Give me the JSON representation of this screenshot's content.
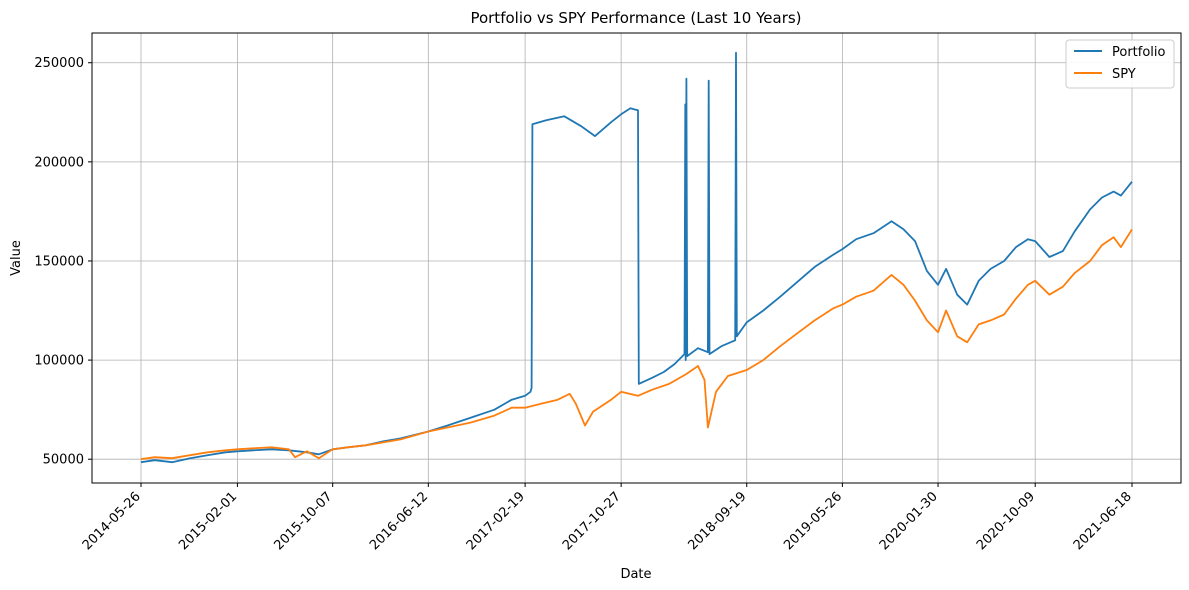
{
  "chart_data": {
    "type": "line",
    "title": "Portfolio vs SPY Performance (Last 10 Years)",
    "xlabel": "Date",
    "ylabel": "Value",
    "x_ticks": [
      "2014-05-26",
      "2015-02-01",
      "2015-10-07",
      "2016-06-12",
      "2017-02-19",
      "2017-10-27",
      "2018-09-19",
      "2019-05-26",
      "2020-01-30",
      "2020-10-09",
      "2021-06-18"
    ],
    "y_ticks": [
      50000,
      100000,
      150000,
      200000,
      250000
    ],
    "y_tick_labels": [
      "50000",
      "100000",
      "150000",
      "200000",
      "250000"
    ],
    "ylim": [
      38000,
      265000
    ],
    "grid": true,
    "legend_position": "top-right",
    "colors": {
      "portfolio": "#1f77b4",
      "spy": "#ff7f0e"
    },
    "series": [
      {
        "name": "Portfolio",
        "color": "#1f77b4",
        "points": [
          [
            "2014-05-26",
            48500
          ],
          [
            "2014-07-01",
            49500
          ],
          [
            "2014-08-15",
            48500
          ],
          [
            "2014-10-01",
            50500
          ],
          [
            "2014-11-15",
            52000
          ],
          [
            "2015-01-01",
            53500
          ],
          [
            "2015-02-01",
            54000
          ],
          [
            "2015-03-15",
            54500
          ],
          [
            "2015-05-01",
            55000
          ],
          [
            "2015-06-15",
            54500
          ],
          [
            "2015-08-01",
            53500
          ],
          [
            "2015-09-01",
            52500
          ],
          [
            "2015-10-07",
            55000
          ],
          [
            "2015-11-15",
            56000
          ],
          [
            "2016-01-01",
            57000
          ],
          [
            "2016-02-15",
            59000
          ],
          [
            "2016-04-01",
            60500
          ],
          [
            "2016-06-12",
            64000
          ],
          [
            "2016-08-01",
            67000
          ],
          [
            "2016-10-01",
            71000
          ],
          [
            "2016-12-01",
            75000
          ],
          [
            "2017-01-15",
            80000
          ],
          [
            "2017-02-19",
            82000
          ],
          [
            "2017-03-05",
            84000
          ],
          [
            "2017-03-08",
            86000
          ],
          [
            "2017-03-10",
            219000
          ],
          [
            "2017-04-15",
            221000
          ],
          [
            "2017-06-01",
            223000
          ],
          [
            "2017-07-15",
            218000
          ],
          [
            "2017-08-20",
            213000
          ],
          [
            "2017-10-01",
            220000
          ],
          [
            "2017-10-27",
            224000
          ],
          [
            "2017-11-20",
            227000
          ],
          [
            "2017-12-10",
            226000
          ],
          [
            "2017-12-12",
            88000
          ],
          [
            "2018-01-15",
            91000
          ],
          [
            "2018-02-15",
            94000
          ],
          [
            "2018-03-15",
            98000
          ],
          [
            "2018-04-10",
            103000
          ],
          [
            "2018-04-12",
            229000
          ],
          [
            "2018-04-13",
            100000
          ],
          [
            "2018-04-15",
            242000
          ],
          [
            "2018-04-17",
            102000
          ],
          [
            "2018-05-15",
            106000
          ],
          [
            "2018-06-10",
            104000
          ],
          [
            "2018-06-12",
            241000
          ],
          [
            "2018-06-14",
            103000
          ],
          [
            "2018-07-15",
            107000
          ],
          [
            "2018-08-20",
            110000
          ],
          [
            "2018-08-22",
            255000
          ],
          [
            "2018-08-24",
            112000
          ],
          [
            "2018-09-19",
            119000
          ],
          [
            "2018-11-01",
            125000
          ],
          [
            "2018-12-15",
            132000
          ],
          [
            "2019-02-01",
            140000
          ],
          [
            "2019-03-15",
            147000
          ],
          [
            "2019-05-01",
            153000
          ],
          [
            "2019-05-26",
            156000
          ],
          [
            "2019-07-01",
            161000
          ],
          [
            "2019-08-15",
            164000
          ],
          [
            "2019-10-01",
            170000
          ],
          [
            "2019-11-01",
            166000
          ],
          [
            "2019-12-01",
            160000
          ],
          [
            "2020-01-01",
            145000
          ],
          [
            "2020-01-30",
            138000
          ],
          [
            "2020-02-20",
            146000
          ],
          [
            "2020-03-20",
            133000
          ],
          [
            "2020-04-15",
            128000
          ],
          [
            "2020-05-15",
            140000
          ],
          [
            "2020-06-15",
            146000
          ],
          [
            "2020-07-20",
            150000
          ],
          [
            "2020-08-20",
            157000
          ],
          [
            "2020-09-20",
            161000
          ],
          [
            "2020-10-09",
            160000
          ],
          [
            "2020-11-15",
            152000
          ],
          [
            "2020-12-20",
            155000
          ],
          [
            "2021-01-20",
            165000
          ],
          [
            "2021-03-01",
            176000
          ],
          [
            "2021-04-01",
            182000
          ],
          [
            "2021-05-01",
            185000
          ],
          [
            "2021-05-20",
            183000
          ],
          [
            "2021-06-18",
            190000
          ]
        ]
      },
      {
        "name": "SPY",
        "color": "#ff7f0e",
        "points": [
          [
            "2014-05-26",
            50000
          ],
          [
            "2014-07-01",
            51000
          ],
          [
            "2014-08-15",
            50500
          ],
          [
            "2014-10-01",
            52000
          ],
          [
            "2014-11-15",
            53500
          ],
          [
            "2015-01-01",
            54500
          ],
          [
            "2015-02-01",
            55000
          ],
          [
            "2015-03-15",
            55500
          ],
          [
            "2015-05-01",
            56000
          ],
          [
            "2015-06-15",
            55000
          ],
          [
            "2015-07-01",
            51000
          ],
          [
            "2015-08-01",
            54000
          ],
          [
            "2015-09-01",
            50500
          ],
          [
            "2015-10-07",
            55000
          ],
          [
            "2015-11-15",
            56000
          ],
          [
            "2016-01-01",
            57000
          ],
          [
            "2016-02-15",
            58500
          ],
          [
            "2016-04-01",
            60000
          ],
          [
            "2016-06-12",
            64000
          ],
          [
            "2016-08-01",
            66000
          ],
          [
            "2016-10-01",
            68500
          ],
          [
            "2016-12-01",
            72000
          ],
          [
            "2017-01-15",
            76000
          ],
          [
            "2017-02-19",
            76000
          ],
          [
            "2017-04-01",
            78000
          ],
          [
            "2017-05-15",
            80000
          ],
          [
            "2017-06-15",
            83000
          ],
          [
            "2017-07-01",
            78000
          ],
          [
            "2017-07-25",
            67000
          ],
          [
            "2017-08-15",
            74000
          ],
          [
            "2017-10-01",
            80000
          ],
          [
            "2017-10-27",
            84000
          ],
          [
            "2017-12-10",
            82000
          ],
          [
            "2018-01-15",
            85000
          ],
          [
            "2018-03-01",
            88000
          ],
          [
            "2018-04-15",
            93000
          ],
          [
            "2018-05-15",
            97000
          ],
          [
            "2018-06-01",
            90000
          ],
          [
            "2018-06-10",
            66000
          ],
          [
            "2018-07-01",
            84000
          ],
          [
            "2018-08-01",
            92000
          ],
          [
            "2018-09-19",
            95000
          ],
          [
            "2018-11-01",
            100000
          ],
          [
            "2018-12-15",
            107000
          ],
          [
            "2019-02-01",
            114000
          ],
          [
            "2019-03-15",
            120000
          ],
          [
            "2019-05-01",
            126000
          ],
          [
            "2019-05-26",
            128000
          ],
          [
            "2019-07-01",
            132000
          ],
          [
            "2019-08-15",
            135000
          ],
          [
            "2019-10-01",
            143000
          ],
          [
            "2019-11-01",
            138000
          ],
          [
            "2019-12-01",
            130000
          ],
          [
            "2020-01-01",
            120000
          ],
          [
            "2020-01-30",
            114000
          ],
          [
            "2020-02-20",
            125000
          ],
          [
            "2020-03-20",
            112000
          ],
          [
            "2020-04-15",
            109000
          ],
          [
            "2020-05-15",
            118000
          ],
          [
            "2020-06-15",
            120000
          ],
          [
            "2020-07-20",
            123000
          ],
          [
            "2020-08-20",
            131000
          ],
          [
            "2020-09-20",
            138000
          ],
          [
            "2020-10-09",
            140000
          ],
          [
            "2020-11-15",
            133000
          ],
          [
            "2020-12-20",
            137000
          ],
          [
            "2021-01-20",
            144000
          ],
          [
            "2021-03-01",
            150000
          ],
          [
            "2021-04-01",
            158000
          ],
          [
            "2021-05-01",
            162000
          ],
          [
            "2021-05-20",
            157000
          ],
          [
            "2021-06-18",
            166000
          ]
        ]
      }
    ]
  }
}
